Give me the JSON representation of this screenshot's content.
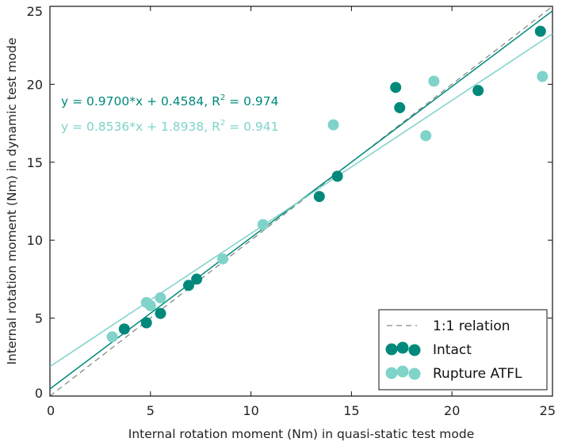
{
  "chart_data": {
    "type": "scatter",
    "title": "",
    "xlabel": "Internal rotation moment (Nm) in quasi-static test mode",
    "ylabel": "Internal rotation moment (Nm) in dynamic test mode",
    "xlim": [
      0,
      25
    ],
    "ylim": [
      0,
      25
    ],
    "xticks": [
      0,
      5,
      10,
      15,
      20,
      25
    ],
    "yticks": [
      0,
      5,
      10,
      15,
      20,
      25
    ],
    "grid": false,
    "legend_position": "bottom-right",
    "colors": {
      "intact": "#00897b",
      "rupture": "#7fd3c9",
      "reference": "#888888"
    },
    "reference_line": {
      "name": "1:1 relation",
      "slope": 1,
      "intercept": 0
    },
    "series": [
      {
        "name": "Intact",
        "fit": {
          "slope": 0.97,
          "intercept": 0.4584,
          "r2": 0.974,
          "label_prefix": "y = 0.9700*x + 0.4584, R",
          "label_sup": "2",
          "label_suffix": " = 0.974"
        },
        "points": [
          [
            3.7,
            4.3
          ],
          [
            4.8,
            4.7
          ],
          [
            5.5,
            5.3
          ],
          [
            6.9,
            7.1
          ],
          [
            7.3,
            7.5
          ],
          [
            13.4,
            12.8
          ],
          [
            14.3,
            14.1
          ],
          [
            17.2,
            19.8
          ],
          [
            17.4,
            18.5
          ],
          [
            21.3,
            19.6
          ],
          [
            24.4,
            23.4
          ]
        ]
      },
      {
        "name": "Rupture ATFL",
        "fit": {
          "slope": 0.8536,
          "intercept": 1.8938,
          "r2": 0.941,
          "label_prefix": "y = 0.8536*x + 1.8938, R",
          "label_sup": "2",
          "label_suffix": " = 0.941"
        },
        "points": [
          [
            3.1,
            3.8
          ],
          [
            4.8,
            6.0
          ],
          [
            5.0,
            5.8
          ],
          [
            5.5,
            6.3
          ],
          [
            8.6,
            8.8
          ],
          [
            10.6,
            11.0
          ],
          [
            14.1,
            17.4
          ],
          [
            18.7,
            16.7
          ],
          [
            19.1,
            20.2
          ],
          [
            24.5,
            20.5
          ]
        ]
      }
    ]
  }
}
